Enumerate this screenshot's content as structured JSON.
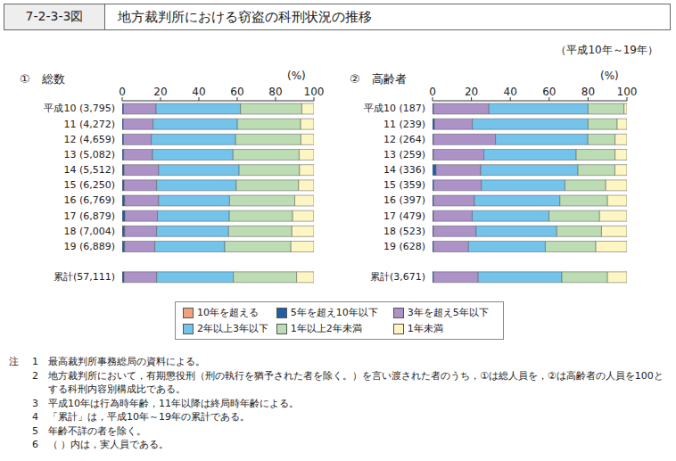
{
  "figure_number": "7-2-3-3図",
  "title": "地方裁判所における窃盗の科刑状況の推移",
  "period": "（平成10年～19年）",
  "chart_data": [
    {
      "type": "bar",
      "title": "①　総数",
      "orientation": "horizontal",
      "stacked": true,
      "grid": false,
      "legend": "bottom",
      "x_label": "(%)",
      "xlim": [
        0,
        100
      ],
      "xticks": [
        0,
        20,
        40,
        60,
        80,
        100
      ],
      "categories": [
        "平成10 (3,795)",
        "11 (4,272)",
        "12 (4,659)",
        "13 (5,082)",
        "14 (5,512)",
        "15 (6,250)",
        "16 (6,769)",
        "17 (6,879)",
        "18 (7,004)",
        "19 (6,889)",
        null,
        "累計(57,111)"
      ],
      "series": [
        {
          "name": "10年を超える",
          "color": "#f0a27c",
          "values": [
            0.1,
            0.1,
            0.1,
            0.1,
            0.1,
            0.1,
            0.1,
            0.1,
            0.1,
            0.1,
            null,
            0.1
          ]
        },
        {
          "name": "5年を超え10年以下",
          "color": "#1f5fa8",
          "values": [
            0.6,
            0.5,
            0.6,
            0.7,
            0.9,
            0.9,
            1.2,
            1.3,
            1.2,
            1.2,
            null,
            0.9
          ]
        },
        {
          "name": "3年を超え5年以下",
          "color": "#ad92c8",
          "values": [
            17,
            15.5,
            14.5,
            15,
            18,
            17,
            17.7,
            17,
            16.7,
            15.7,
            null,
            17
          ]
        },
        {
          "name": "2年以上3年以下",
          "color": "#74c3ea",
          "values": [
            44,
            44,
            44,
            42,
            42,
            41.5,
            37,
            37.5,
            37.5,
            36.5,
            null,
            40
          ]
        },
        {
          "name": "1年以上2年未満",
          "color": "#bcdcb3",
          "values": [
            32,
            33,
            34,
            34.5,
            31.5,
            32.5,
            34,
            33,
            33,
            34.5,
            null,
            33
          ]
        },
        {
          "name": "1年未満",
          "color": "#fdf5c2",
          "values": [
            6.3,
            6.9,
            6.8,
            7.7,
            7.5,
            8,
            10,
            11,
            11.5,
            12,
            null,
            9
          ]
        }
      ]
    },
    {
      "type": "bar",
      "title": "②　高齢者",
      "orientation": "horizontal",
      "stacked": true,
      "grid": false,
      "x_label": "(%)",
      "xlim": [
        0,
        100
      ],
      "xticks": [
        0,
        20,
        40,
        60,
        80,
        100
      ],
      "categories": [
        "平成10 (187)",
        "11 (239)",
        "12 (264)",
        "13 (259)",
        "14 (336)",
        "15 (359)",
        "16 (397)",
        "17 (479)",
        "18 (523)",
        "19 (628)",
        null,
        "累計(3,671)"
      ],
      "series": [
        {
          "name": "10年を超える",
          "color": "#f0a27c",
          "values": [
            0,
            0,
            0,
            0,
            0,
            0,
            0,
            0,
            0,
            0,
            null,
            0
          ]
        },
        {
          "name": "5年を超え10年以下",
          "color": "#1f5fa8",
          "values": [
            0.5,
            1,
            0.4,
            0.4,
            1.8,
            0.6,
            0.5,
            0.4,
            0.4,
            0.5,
            null,
            0.5
          ]
        },
        {
          "name": "3年を超え5年以下",
          "color": "#ad92c8",
          "values": [
            28.5,
            19.5,
            32,
            26,
            23,
            24.5,
            21,
            20,
            22,
            18,
            null,
            23
          ]
        },
        {
          "name": "2年以上3年以下",
          "color": "#74c3ea",
          "values": [
            51,
            59.5,
            47.5,
            47.5,
            50,
            43,
            44,
            39.5,
            41.5,
            39.5,
            null,
            43
          ]
        },
        {
          "name": "1年以上2年未満",
          "color": "#bcdcb3",
          "values": [
            18.5,
            15,
            14,
            20,
            19,
            21,
            24.5,
            26,
            23,
            26,
            null,
            23.5
          ]
        },
        {
          "name": "1年未満",
          "color": "#fdf5c2",
          "values": [
            1.5,
            5,
            6.1,
            6.1,
            6.2,
            10.9,
            10,
            14.1,
            13.1,
            16,
            null,
            10
          ]
        }
      ]
    }
  ],
  "notes_label": "注",
  "notes": [
    {
      "number": "1",
      "text": "最高裁判所事務総局の資料による。"
    },
    {
      "number": "2",
      "text": "地方裁判所において，有期懲役刑（刑の執行を猶予された者を除く。）を言い渡された者のうち，①は総人員を，②は高齢者の人員を100とする科刑内容別構成比である。"
    },
    {
      "number": "3",
      "text": "平成10年は行為時年齢，11年以降は終局時年齢による。"
    },
    {
      "number": "4",
      "text": "「累計」は，平成10年～19年の累計である。"
    },
    {
      "number": "5",
      "text": "年齢不詳の者を除く。"
    },
    {
      "number": "6",
      "text": "（ ）内は，実人員である。"
    }
  ]
}
